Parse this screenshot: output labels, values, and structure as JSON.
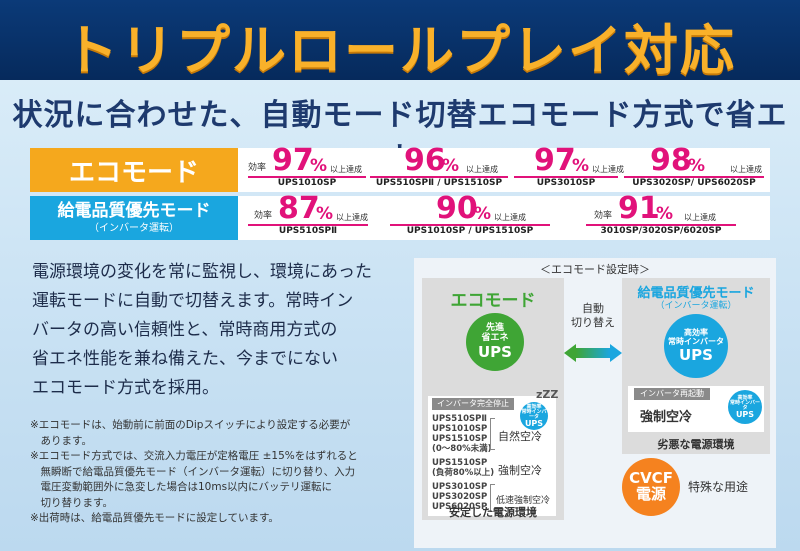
{
  "banner": {
    "title": "トリプルロールプレイ対応"
  },
  "subtitle": "状況に合わせた、自動モード切替エコモード方式で省エネ",
  "eco_mode": {
    "label": "エコモード",
    "items": [
      {
        "prefix": "効率",
        "value": "97",
        "unit": "%",
        "suffix": "以上達成",
        "model": "UPS1010SP"
      },
      {
        "prefix": "",
        "value": "96",
        "unit": "%",
        "suffix": "以上達成",
        "model": "UPS510SPⅡ / UPS1510SP"
      },
      {
        "prefix": "",
        "value": "97",
        "unit": "%",
        "suffix": "以上達成",
        "model": "UPS3010SP"
      },
      {
        "prefix": "",
        "value": "98",
        "unit": "%",
        "suffix": "以上達成",
        "model": "UPS3020SP/ UPS6020SP"
      }
    ]
  },
  "priority_mode": {
    "label": "給電品質優先モード",
    "sub_label": "（インバータ運転）",
    "items": [
      {
        "prefix": "効率",
        "value": "87",
        "unit": "%",
        "suffix": "以上達成",
        "model": "UPS510SPⅡ"
      },
      {
        "prefix": "",
        "value": "90",
        "unit": "%",
        "suffix": "以上達成",
        "model": "UPS1010SP / UPS1510SP"
      },
      {
        "prefix": "効率",
        "value": "91",
        "unit": "%",
        "suffix": "以上達成",
        "model": "3010SP/3020SP/6020SP"
      }
    ]
  },
  "description": [
    "電源環境の変化を常に監視し、環境にあった",
    "運転モードに自動で切替えます。常時イン",
    "バータの高い信頼性と、常時商用方式の",
    "省エネ性能を兼ね備えた、今までにない",
    "エコモード方式を採用。"
  ],
  "notes": [
    "※エコモードは、始動前に前面のDipスイッチにより設定する必要が",
    "　あります。",
    "※エコモード方式では、交流入力電圧が定格電圧 ±15%をはずれると",
    "　無瞬断で給電品質優先モード（インバータ運転）に切り替り、入力",
    "　電圧変動範囲外に急変した場合は10ms以内にバッテリ運転に",
    "　切り替ります。",
    "※出荷時は、給電品質優先モードに設定しています。"
  ],
  "panel": {
    "title": "＜エコモード設定時＞",
    "eco": {
      "title": "エコモード",
      "circle_line1": "先進",
      "circle_line2": "省エネ",
      "circle_line3": "UPS",
      "inverter_stop": "インバータ完全停止",
      "zzz": "zZZ",
      "small_ups_line1": "高効率",
      "small_ups_line2": "常時インバータ",
      "small_ups_line3": "UPS",
      "models_group1": [
        "UPS510SPⅡ",
        "UPS1010SP",
        "UPS1510SP",
        "(0～80%未満)"
      ],
      "cool_natural": "自然空冷",
      "models_group2": [
        "UPS1510SP",
        "(負荷80%以上)"
      ],
      "cool_forced": "強制空冷",
      "models_group3": [
        "UPS3010SP",
        "UPS3020SP",
        "UPS6020SP"
      ],
      "cool_low": "低速強制空冷",
      "footer": "安定した電源環境"
    },
    "switch": {
      "line1": "自動",
      "line2": "切り替え"
    },
    "priority": {
      "title": "給電品質優先モード",
      "sub_title": "（インバータ運転）",
      "circle_line1": "高効率",
      "circle_line2": "常時インバータ",
      "circle_line3": "UPS",
      "inverter_restart": "インバータ再起動",
      "forced_cool": "強制空冷",
      "small_ups_line1": "高効率",
      "small_ups_line2": "常時インバータ",
      "small_ups_line3": "UPS",
      "footer": "劣悪な電源環境"
    },
    "cvcf": {
      "line1": "CVCF",
      "line2": "電源",
      "label": "特殊な用途"
    }
  },
  "colors": {
    "banner_bg": "#062a5c",
    "banner_text": "#f9b12a",
    "eco_orange": "#f5a81d",
    "priority_blue": "#1aa6df",
    "efficiency_magenta": "#e1127a",
    "eco_green": "#3fa535",
    "cvcf_orange": "#f5821f"
  }
}
